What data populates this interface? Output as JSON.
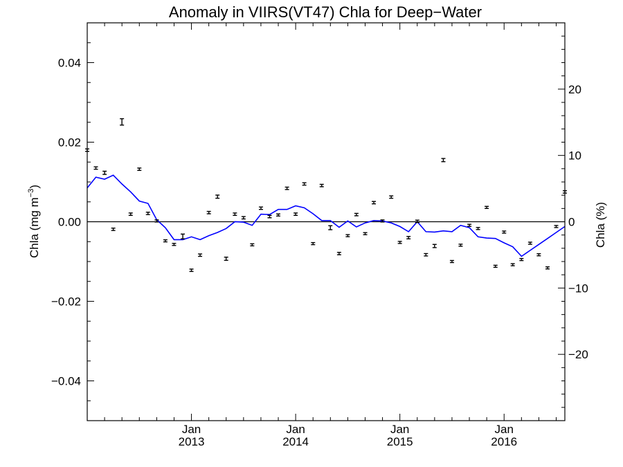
{
  "chart_data": {
    "type": "scatter",
    "title": "Anomaly in VIIRS(VT47) Chla for Deep−Water",
    "ylabel_left": {
      "text": "Chla (mg m",
      "sup": "−3",
      "close": ")"
    },
    "ylabel_right": "Chla (%)",
    "xlim": [
      2012.0,
      2016.583
    ],
    "ylim_left": [
      -0.05,
      0.05
    ],
    "ylim_right": [
      -30,
      30
    ],
    "x_ticks": [
      {
        "x": 2013.0,
        "month": "Jan",
        "year": "2013"
      },
      {
        "x": 2014.0,
        "month": "Jan",
        "year": "2014"
      },
      {
        "x": 2015.0,
        "month": "Jan",
        "year": "2015"
      },
      {
        "x": 2016.0,
        "month": "Jan",
        "year": "2016"
      }
    ],
    "y_ticks_left": [
      {
        "v": 0.04,
        "label": "0.04"
      },
      {
        "v": 0.02,
        "label": "0.02"
      },
      {
        "v": 0.0,
        "label": "0.00"
      },
      {
        "v": -0.02,
        "label": "−0.02"
      },
      {
        "v": -0.04,
        "label": "−0.04"
      }
    ],
    "y_ticks_right": [
      {
        "v": 20,
        "label": "20"
      },
      {
        "v": 10,
        "label": "10"
      },
      {
        "v": 0,
        "label": "0"
      },
      {
        "v": -10,
        "label": "−10"
      },
      {
        "v": -20,
        "label": "−20"
      }
    ],
    "series": [
      {
        "type": "scatter-errorbar",
        "color": "#000000",
        "points": [
          {
            "x": 2012.0,
            "y": 0.018,
            "err": 0.0003
          },
          {
            "x": 2012.083,
            "y": 0.0135,
            "err": 0.0003
          },
          {
            "x": 2012.167,
            "y": 0.0123,
            "err": 0.0004
          },
          {
            "x": 2012.25,
            "y": -0.0019,
            "err": 0.0003
          },
          {
            "x": 2012.333,
            "y": 0.0251,
            "err": 0.0008
          },
          {
            "x": 2012.417,
            "y": 0.0019,
            "err": 0.0003
          },
          {
            "x": 2012.5,
            "y": 0.0132,
            "err": 0.0003
          },
          {
            "x": 2012.583,
            "y": 0.0021,
            "err": 0.0003
          },
          {
            "x": 2012.667,
            "y": 0.0002,
            "err": 0.0002
          },
          {
            "x": 2012.75,
            "y": -0.0048,
            "err": 0.0002
          },
          {
            "x": 2012.833,
            "y": -0.0057,
            "err": 0.0002
          },
          {
            "x": 2012.917,
            "y": -0.0037,
            "err": 0.0006
          },
          {
            "x": 2013.0,
            "y": -0.0122,
            "err": 0.0003
          },
          {
            "x": 2013.083,
            "y": -0.0084,
            "err": 0.0003
          },
          {
            "x": 2013.167,
            "y": 0.0023,
            "err": 0.0003
          },
          {
            "x": 2013.25,
            "y": 0.0063,
            "err": 0.0004
          },
          {
            "x": 2013.333,
            "y": -0.0093,
            "err": 0.0004
          },
          {
            "x": 2013.417,
            "y": 0.0019,
            "err": 0.0003
          },
          {
            "x": 2013.5,
            "y": 0.001,
            "err": 0.0003
          },
          {
            "x": 2013.583,
            "y": -0.0058,
            "err": 0.0002
          },
          {
            "x": 2013.667,
            "y": 0.0034,
            "err": 0.0003
          },
          {
            "x": 2013.75,
            "y": 0.0013,
            "err": 0.0003
          },
          {
            "x": 2013.833,
            "y": 0.0017,
            "err": 0.0002
          },
          {
            "x": 2013.917,
            "y": 0.0084,
            "err": 0.0003
          },
          {
            "x": 2014.0,
            "y": 0.0019,
            "err": 0.0003
          },
          {
            "x": 2014.083,
            "y": 0.0095,
            "err": 0.0003
          },
          {
            "x": 2014.167,
            "y": -0.0055,
            "err": 0.0002
          },
          {
            "x": 2014.25,
            "y": 0.0091,
            "err": 0.0003
          },
          {
            "x": 2014.333,
            "y": -0.0015,
            "err": 0.0005
          },
          {
            "x": 2014.417,
            "y": -0.008,
            "err": 0.0003
          },
          {
            "x": 2014.5,
            "y": -0.0035,
            "err": 0.0002
          },
          {
            "x": 2014.583,
            "y": 0.0018,
            "err": 0.0003
          },
          {
            "x": 2014.667,
            "y": -0.003,
            "err": 0.0002
          },
          {
            "x": 2014.75,
            "y": 0.0048,
            "err": 0.0003
          },
          {
            "x": 2014.833,
            "y": 0.0002,
            "err": 0.0002
          },
          {
            "x": 2014.917,
            "y": 0.0062,
            "err": 0.0003
          },
          {
            "x": 2015.0,
            "y": -0.0052,
            "err": 0.0002
          },
          {
            "x": 2015.083,
            "y": -0.004,
            "err": 0.0003
          },
          {
            "x": 2015.167,
            "y": 0.0001,
            "err": 0.0003
          },
          {
            "x": 2015.25,
            "y": -0.0083,
            "err": 0.0003
          },
          {
            "x": 2015.333,
            "y": -0.0061,
            "err": 0.0004
          },
          {
            "x": 2015.417,
            "y": 0.0155,
            "err": 0.0004
          },
          {
            "x": 2015.5,
            "y": -0.01,
            "err": 0.0002
          },
          {
            "x": 2015.583,
            "y": -0.0059,
            "err": 0.0002
          },
          {
            "x": 2015.667,
            "y": -0.0009,
            "err": 0.0002
          },
          {
            "x": 2015.75,
            "y": -0.0017,
            "err": 0.0002
          },
          {
            "x": 2015.833,
            "y": 0.0036,
            "err": 0.0002
          },
          {
            "x": 2015.917,
            "y": -0.0112,
            "err": 0.0002
          },
          {
            "x": 2016.0,
            "y": -0.0026,
            "err": 0.0002
          },
          {
            "x": 2016.083,
            "y": -0.0108,
            "err": 0.0002
          },
          {
            "x": 2016.167,
            "y": -0.0095,
            "err": 0.0002
          },
          {
            "x": 2016.25,
            "y": -0.0054,
            "err": 0.0002
          },
          {
            "x": 2016.333,
            "y": -0.0083,
            "err": 0.0002
          },
          {
            "x": 2016.417,
            "y": -0.0116,
            "err": 0.0002
          },
          {
            "x": 2016.5,
            "y": -0.0012,
            "err": 0.0002
          },
          {
            "x": 2016.583,
            "y": 0.0075,
            "err": 0.0003
          }
        ]
      },
      {
        "type": "line",
        "color": "#0000ff",
        "points": [
          {
            "x": 2012.0,
            "y": 0.0085
          },
          {
            "x": 2012.083,
            "y": 0.0112
          },
          {
            "x": 2012.167,
            "y": 0.0107
          },
          {
            "x": 2012.25,
            "y": 0.0117
          },
          {
            "x": 2012.333,
            "y": 0.0095
          },
          {
            "x": 2012.417,
            "y": 0.0075
          },
          {
            "x": 2012.5,
            "y": 0.0052
          },
          {
            "x": 2012.583,
            "y": 0.0046
          },
          {
            "x": 2012.667,
            "y": 0.0005
          },
          {
            "x": 2012.75,
            "y": -0.0015
          },
          {
            "x": 2012.833,
            "y": -0.0045
          },
          {
            "x": 2012.917,
            "y": -0.0045
          },
          {
            "x": 2013.0,
            "y": -0.0038
          },
          {
            "x": 2013.083,
            "y": -0.0045
          },
          {
            "x": 2013.167,
            "y": -0.0035
          },
          {
            "x": 2013.25,
            "y": -0.0027
          },
          {
            "x": 2013.333,
            "y": -0.0017
          },
          {
            "x": 2013.417,
            "y": 0.0
          },
          {
            "x": 2013.5,
            "y": -0.0001
          },
          {
            "x": 2013.583,
            "y": -0.0009
          },
          {
            "x": 2013.667,
            "y": 0.0019
          },
          {
            "x": 2013.75,
            "y": 0.0018
          },
          {
            "x": 2013.833,
            "y": 0.0031
          },
          {
            "x": 2013.917,
            "y": 0.0031
          },
          {
            "x": 2014.0,
            "y": 0.004
          },
          {
            "x": 2014.083,
            "y": 0.0035
          },
          {
            "x": 2014.167,
            "y": 0.002
          },
          {
            "x": 2014.25,
            "y": 0.0003
          },
          {
            "x": 2014.333,
            "y": 0.0003
          },
          {
            "x": 2014.417,
            "y": -0.0014
          },
          {
            "x": 2014.5,
            "y": 0.0002
          },
          {
            "x": 2014.583,
            "y": -0.0013
          },
          {
            "x": 2014.667,
            "y": -0.0003
          },
          {
            "x": 2014.75,
            "y": 0.0003
          },
          {
            "x": 2014.833,
            "y": 0.0002
          },
          {
            "x": 2014.917,
            "y": -0.0003
          },
          {
            "x": 2015.0,
            "y": -0.0012
          },
          {
            "x": 2015.083,
            "y": -0.0025
          },
          {
            "x": 2015.167,
            "y": 0.0
          },
          {
            "x": 2015.25,
            "y": -0.0025
          },
          {
            "x": 2015.333,
            "y": -0.0026
          },
          {
            "x": 2015.417,
            "y": -0.0023
          },
          {
            "x": 2015.5,
            "y": -0.0025
          },
          {
            "x": 2015.583,
            "y": -0.0009
          },
          {
            "x": 2015.667,
            "y": -0.0015
          },
          {
            "x": 2015.75,
            "y": -0.0038
          },
          {
            "x": 2015.833,
            "y": -0.0041
          },
          {
            "x": 2015.917,
            "y": -0.0042
          },
          {
            "x": 2016.0,
            "y": -0.0053
          },
          {
            "x": 2016.083,
            "y": -0.0063
          },
          {
            "x": 2016.167,
            "y": -0.0087
          },
          {
            "x": 2016.25,
            "y": -0.0072
          },
          {
            "x": 2016.333,
            "y": -0.0057
          },
          {
            "x": 2016.417,
            "y": -0.0042
          },
          {
            "x": 2016.5,
            "y": -0.0027
          },
          {
            "x": 2016.583,
            "y": -0.0012
          }
        ]
      }
    ],
    "reference_line": {
      "y": 0,
      "color": "#000000"
    },
    "grid": false,
    "legend": "none"
  }
}
